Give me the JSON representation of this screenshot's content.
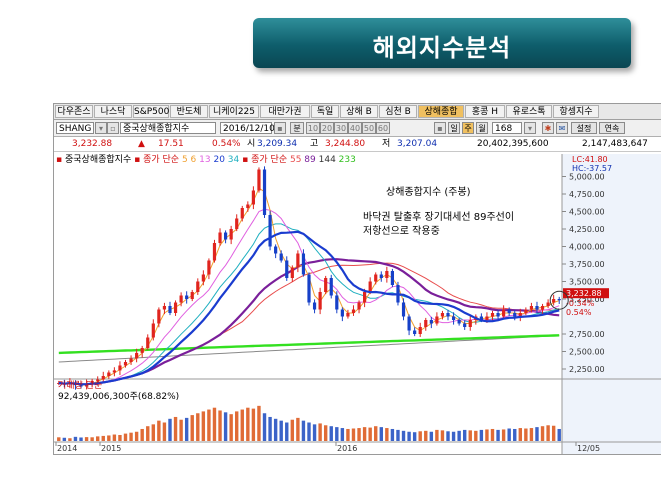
{
  "banner": {
    "title": "해외지수분석"
  },
  "toolbar": {
    "tabs": [
      "다우존스",
      "나스닥",
      "S&P500",
      "반도체",
      "니케이225",
      "대만가권",
      "독일",
      "상해 B",
      "심천 B",
      "상해종합",
      "홍콩 H",
      "유로스톡",
      "항셍지수"
    ],
    "active_tab": "상해종합",
    "code": "SHANG",
    "name": "중국상해종합지수",
    "date": "2016/12/10",
    "view_label": "분",
    "period_buttons": [
      "10",
      "20",
      "30",
      "40",
      "50",
      "60"
    ],
    "day_label": "일",
    "week_label": "주",
    "month_label": "월",
    "count": "168",
    "settings_label": "설정",
    "continuous_label": "연속"
  },
  "quote": {
    "price": "3,232.88",
    "change_arrow": "▲",
    "change": "17.51",
    "pct": "0.54%",
    "open_label": "시",
    "open": "3,209.34",
    "high_label": "고",
    "high": "3,244.80",
    "low_label": "저",
    "low": "3,207.04",
    "volume": "20,402,395,600",
    "amount": "2,147,483,647"
  },
  "legend": {
    "title": "중국상해종합지수",
    "ma_short_label": "종가 단순",
    "ma_short_periods": [
      "5",
      "6",
      "13",
      "20",
      "34"
    ],
    "ma_long_label": "종가 단순",
    "ma_long_periods": [
      "55",
      "89",
      "144",
      "233"
    ]
  },
  "annotations": {
    "title": "상해종합지수 (주봉)",
    "line1": "바닥권 탈출후 장기대세선 89주선이",
    "line2": "저항선으로 작용중"
  },
  "price_axis": {
    "top_labels": [
      "LC:41.80",
      "HC:-37.57"
    ],
    "ticks": [
      "5,000.00",
      "4,750.00",
      "4,500.00",
      "4,250.00",
      "4,000.00",
      "3,750.00",
      "3,500.00",
      "3,250.00",
      "2,750.00",
      "2,500.00",
      "2,250.00"
    ],
    "current": "3,232.88",
    "current_pct": "0.54%",
    "current_pct2": "-0.34%"
  },
  "volume_panel": {
    "title": "거래량 단순",
    "value": "92,439,006,300주(68.82%)",
    "ticks": [
      "300,000M",
      "200,000M",
      "100,000M"
    ]
  },
  "x_axis": {
    "labels": [
      "2014",
      "2015",
      "2016",
      "12/05"
    ]
  },
  "colors": {
    "up": "#e0241e",
    "down": "#1640c8",
    "ma_blue": "#1a3ccf",
    "ma_purple": "#7a1f9a",
    "ma_green": "#33e020",
    "ma_red": "#e84c4c",
    "vol_up": "#e06b36",
    "vol_down": "#3b63c8",
    "banner": "#0e5d6b"
  },
  "chart_data": {
    "type": "candlestick",
    "title": "상해종합지수 (주봉)",
    "ylim": [
      2150,
      5150
    ],
    "period": "weekly",
    "x_range": [
      "2014",
      "2016/12/05"
    ],
    "price_series": [
      2050,
      2030,
      2060,
      2020,
      2000,
      2040,
      2080,
      2100,
      2150,
      2200,
      2230,
      2300,
      2350,
      2400,
      2480,
      2550,
      2700,
      2900,
      3100,
      3150,
      3050,
      3200,
      3300,
      3250,
      3350,
      3500,
      3600,
      3800,
      4050,
      4200,
      4100,
      4250,
      4400,
      4550,
      4600,
      4800,
      5100,
      4450,
      4000,
      3900,
      3800,
      3550,
      3700,
      3900,
      3600,
      3200,
      3100,
      3350,
      3550,
      3300,
      3100,
      3000,
      3050,
      3100,
      3200,
      3350,
      3500,
      3600,
      3550,
      3650,
      3450,
      3200,
      3000,
      2800,
      2750,
      2850,
      2950,
      2900,
      3000,
      3050,
      3000,
      2950,
      2900,
      2850,
      2950,
      3000,
      2950,
      3000,
      3050,
      3000,
      3100,
      3050,
      3000,
      3050,
      3100,
      3150,
      3100,
      3150,
      3200,
      3250,
      3232.88
    ],
    "volume_series_M": [
      40,
      35,
      30,
      45,
      38,
      42,
      40,
      50,
      55,
      60,
      70,
      65,
      80,
      90,
      100,
      130,
      160,
      180,
      220,
      200,
      240,
      260,
      230,
      250,
      280,
      300,
      320,
      340,
      360,
      330,
      310,
      290,
      320,
      340,
      360,
      350,
      380,
      300,
      260,
      240,
      220,
      200,
      230,
      250,
      220,
      200,
      180,
      190,
      170,
      160,
      150,
      140,
      130,
      135,
      140,
      150,
      145,
      160,
      150,
      140,
      130,
      120,
      110,
      100,
      95,
      105,
      110,
      100,
      120,
      115,
      105,
      100,
      110,
      120,
      115,
      110,
      120,
      125,
      130,
      120,
      125,
      135,
      130,
      140,
      135,
      140,
      150,
      160,
      170,
      165,
      130
    ],
    "ma_lines": [
      {
        "name": "MA5",
        "color": "#f0a030"
      },
      {
        "name": "MA13",
        "color": "#e060e0"
      },
      {
        "name": "MA20",
        "color": "#1a3ccf"
      },
      {
        "name": "MA55",
        "color": "#e84c4c"
      },
      {
        "name": "MA89",
        "color": "#7a1f9a"
      },
      {
        "name": "MA144",
        "color": "#333333"
      },
      {
        "name": "MA233",
        "color": "#33e020"
      }
    ]
  }
}
